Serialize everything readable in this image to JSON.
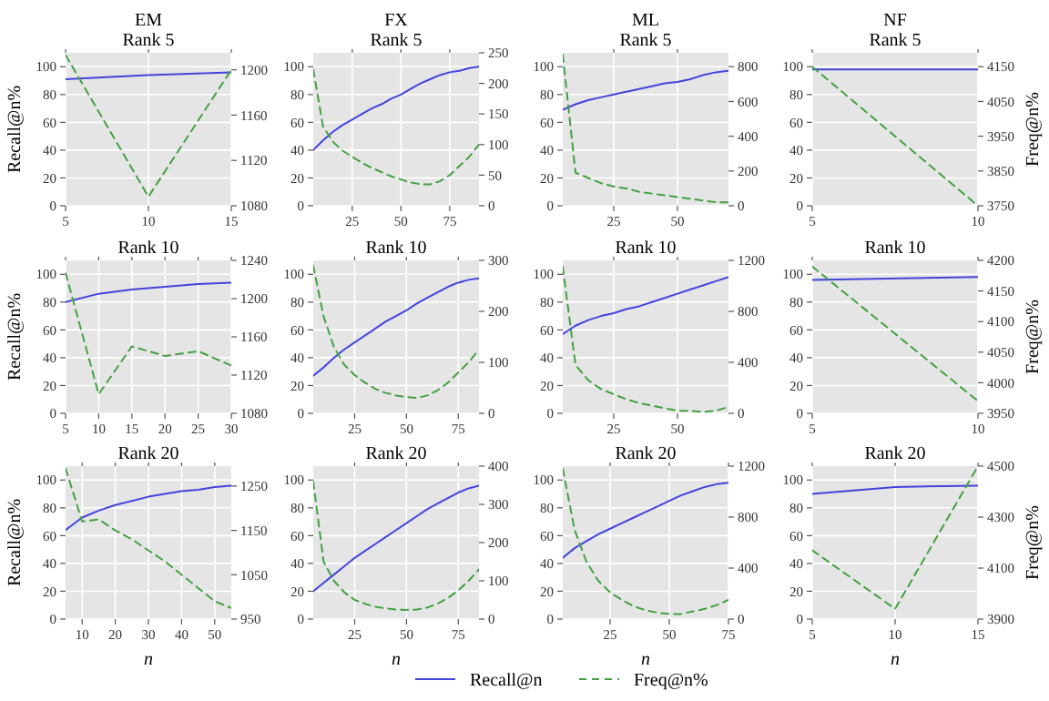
{
  "chart_data": [
    {
      "type": "line",
      "title": "EM",
      "subtitle": "Rank 5",
      "ylabel": "Recall@n%",
      "x": [
        5,
        10,
        15
      ],
      "xlim": [
        5,
        15
      ],
      "xticks": [
        5,
        10,
        15
      ],
      "ylim": [
        0,
        110
      ],
      "yticks": [
        0,
        20,
        40,
        60,
        80,
        100
      ],
      "y2lim": [
        1080,
        1215
      ],
      "y2ticks": [
        1080,
        1120,
        1160,
        1200
      ],
      "grid": true,
      "series": [
        {
          "color": "#4444dd",
          "line_style": "solid",
          "values": [
            91,
            94,
            96
          ]
        },
        {
          "color": "#44a044",
          "line_style": "dashed",
          "axis": "y2",
          "values": [
            1213,
            1088,
            1200
          ]
        }
      ]
    },
    {
      "type": "line",
      "title": "FX",
      "subtitle": "Rank 5",
      "x": [
        5,
        10,
        15,
        20,
        25,
        30,
        35,
        40,
        45,
        50,
        55,
        60,
        65,
        70,
        75,
        80,
        85,
        90
      ],
      "xlim": [
        5,
        90
      ],
      "xticks": [
        25,
        50,
        75
      ],
      "ylim": [
        0,
        110
      ],
      "yticks": [
        0,
        20,
        40,
        60,
        80,
        100
      ],
      "y2lim": [
        0,
        250
      ],
      "y2ticks": [
        0,
        50,
        100,
        150,
        200,
        250
      ],
      "grid": true,
      "series": [
        {
          "color": "#4444dd",
          "line_style": "solid",
          "values": [
            40,
            47,
            53,
            58,
            62,
            66,
            70,
            73,
            77,
            80,
            84,
            88,
            91,
            94,
            96,
            97,
            99,
            100
          ]
        },
        {
          "color": "#44a044",
          "line_style": "dashed",
          "axis": "y2",
          "values": [
            223,
            130,
            105,
            90,
            80,
            70,
            62,
            55,
            48,
            43,
            38,
            35,
            35,
            40,
            50,
            65,
            80,
            100
          ]
        }
      ]
    },
    {
      "type": "line",
      "title": "ML",
      "subtitle": "Rank 5",
      "x": [
        5,
        10,
        15,
        20,
        25,
        30,
        35,
        40,
        45,
        50,
        55,
        60,
        65,
        70
      ],
      "xlim": [
        5,
        70
      ],
      "xticks": [
        25,
        50
      ],
      "ylim": [
        0,
        110
      ],
      "yticks": [
        0,
        20,
        40,
        60,
        80,
        100
      ],
      "y2lim": [
        0,
        880
      ],
      "y2ticks": [
        0,
        200,
        400,
        600,
        800
      ],
      "grid": true,
      "series": [
        {
          "color": "#4444dd",
          "line_style": "solid",
          "values": [
            69,
            73,
            76,
            78,
            80,
            82,
            84,
            86,
            88,
            89,
            91,
            94,
            96,
            97
          ]
        },
        {
          "color": "#44a044",
          "line_style": "dashed",
          "axis": "y2",
          "values": [
            870,
            190,
            160,
            130,
            110,
            100,
            80,
            70,
            60,
            50,
            40,
            30,
            20,
            20
          ]
        }
      ]
    },
    {
      "type": "line",
      "title": "NF",
      "subtitle": "Rank 5",
      "y2label": "Freq@n%",
      "x": [
        5,
        10
      ],
      "xlim": [
        5,
        10
      ],
      "xticks": [
        5,
        10
      ],
      "ylim": [
        0,
        110
      ],
      "yticks": [
        0,
        20,
        40,
        60,
        80,
        100
      ],
      "y2lim": [
        3750,
        4190
      ],
      "y2ticks": [
        3750,
        3850,
        3950,
        4050,
        4150
      ],
      "grid": true,
      "series": [
        {
          "color": "#4444dd",
          "line_style": "solid",
          "values": [
            98,
            98
          ]
        },
        {
          "color": "#44a044",
          "line_style": "dashed",
          "axis": "y2",
          "values": [
            4150,
            3750
          ]
        }
      ]
    },
    {
      "type": "line",
      "title": "Rank 10",
      "ylabel": "Recall@n%",
      "x": [
        5,
        10,
        15,
        20,
        25,
        30
      ],
      "xlim": [
        5,
        30
      ],
      "xticks": [
        5,
        10,
        15,
        20,
        25,
        30
      ],
      "ylim": [
        0,
        110
      ],
      "yticks": [
        0,
        20,
        40,
        60,
        80,
        100
      ],
      "y2lim": [
        1080,
        1240
      ],
      "y2ticks": [
        1080,
        1120,
        1160,
        1200,
        1240
      ],
      "grid": true,
      "series": [
        {
          "color": "#4444dd",
          "line_style": "solid",
          "values": [
            80,
            86,
            89,
            91,
            93,
            94
          ]
        },
        {
          "color": "#44a044",
          "line_style": "dashed",
          "axis": "y2",
          "values": [
            1227,
            1100,
            1150,
            1140,
            1145,
            1130
          ]
        }
      ]
    },
    {
      "type": "line",
      "title": "Rank 10",
      "x": [
        5,
        10,
        15,
        20,
        25,
        30,
        35,
        40,
        45,
        50,
        55,
        60,
        65,
        70,
        75,
        80,
        85
      ],
      "xlim": [
        5,
        85
      ],
      "xticks": [
        25,
        50,
        75
      ],
      "ylim": [
        0,
        110
      ],
      "yticks": [
        0,
        20,
        40,
        60,
        80,
        100
      ],
      "y2lim": [
        0,
        300
      ],
      "y2ticks": [
        0,
        100,
        200,
        300
      ],
      "grid": true,
      "series": [
        {
          "color": "#4444dd",
          "line_style": "solid",
          "values": [
            27,
            33,
            40,
            46,
            51,
            56,
            61,
            66,
            70,
            74,
            79,
            83,
            87,
            91,
            94,
            96,
            97
          ]
        },
        {
          "color": "#44a044",
          "line_style": "dashed",
          "axis": "y2",
          "values": [
            290,
            190,
            130,
            95,
            75,
            60,
            48,
            40,
            35,
            32,
            30,
            35,
            45,
            60,
            80,
            100,
            125
          ]
        }
      ]
    },
    {
      "type": "line",
      "title": "Rank 10",
      "x": [
        5,
        10,
        15,
        20,
        25,
        30,
        35,
        40,
        45,
        50,
        55,
        60,
        65,
        70
      ],
      "xlim": [
        5,
        70
      ],
      "xticks": [
        25,
        50
      ],
      "ylim": [
        0,
        110
      ],
      "yticks": [
        0,
        20,
        40,
        60,
        80,
        100
      ],
      "y2lim": [
        0,
        1200
      ],
      "y2ticks": [
        0,
        400,
        800,
        1200
      ],
      "grid": true,
      "series": [
        {
          "color": "#4444dd",
          "line_style": "solid",
          "values": [
            57,
            63,
            67,
            70,
            72,
            75,
            77,
            80,
            83,
            86,
            89,
            92,
            95,
            98
          ]
        },
        {
          "color": "#44a044",
          "line_style": "dashed",
          "axis": "y2",
          "values": [
            1150,
            380,
            260,
            190,
            150,
            110,
            80,
            60,
            40,
            20,
            20,
            10,
            20,
            50
          ]
        }
      ]
    },
    {
      "type": "line",
      "title": "Rank 10",
      "y2label": "Freq@n%",
      "x": [
        5,
        10
      ],
      "xlim": [
        5,
        10
      ],
      "xticks": [
        5,
        10
      ],
      "ylim": [
        0,
        110
      ],
      "yticks": [
        0,
        20,
        40,
        60,
        80,
        100
      ],
      "y2lim": [
        3950,
        4200
      ],
      "y2ticks": [
        3950,
        4000,
        4050,
        4100,
        4150,
        4200
      ],
      "grid": true,
      "series": [
        {
          "color": "#4444dd",
          "line_style": "solid",
          "values": [
            96,
            98
          ]
        },
        {
          "color": "#44a044",
          "line_style": "dashed",
          "axis": "y2",
          "values": [
            4190,
            3970
          ]
        }
      ]
    },
    {
      "type": "line",
      "title": "Rank 20",
      "ylabel": "Recall@n%",
      "xlabel": "n",
      "x": [
        5,
        10,
        15,
        20,
        25,
        30,
        35,
        40,
        45,
        50,
        55
      ],
      "xlim": [
        5,
        55
      ],
      "xticks": [
        10,
        20,
        30,
        40,
        50
      ],
      "ylim": [
        0,
        110
      ],
      "yticks": [
        0,
        20,
        40,
        60,
        80,
        100
      ],
      "y2lim": [
        950,
        1295
      ],
      "y2ticks": [
        950,
        1050,
        1150,
        1250
      ],
      "grid": true,
      "series": [
        {
          "color": "#4444dd",
          "line_style": "solid",
          "values": [
            64,
            73,
            78,
            82,
            85,
            88,
            90,
            92,
            93,
            95,
            96
          ]
        },
        {
          "color": "#44a044",
          "line_style": "dashed",
          "axis": "y2",
          "values": [
            1290,
            1170,
            1175,
            1150,
            1130,
            1105,
            1080,
            1050,
            1020,
            990,
            975
          ]
        }
      ]
    },
    {
      "type": "line",
      "title": "Rank 20",
      "xlabel": "n",
      "x": [
        5,
        10,
        15,
        20,
        25,
        30,
        35,
        40,
        45,
        50,
        55,
        60,
        65,
        70,
        75,
        80,
        85
      ],
      "xlim": [
        5,
        85
      ],
      "xticks": [
        25,
        50,
        75
      ],
      "ylim": [
        0,
        110
      ],
      "yticks": [
        0,
        20,
        40,
        60,
        80,
        100
      ],
      "y2lim": [
        0,
        400
      ],
      "y2ticks": [
        0,
        100,
        200,
        300,
        400
      ],
      "grid": true,
      "series": [
        {
          "color": "#4444dd",
          "line_style": "solid",
          "values": [
            20,
            26,
            32,
            38,
            44,
            49,
            54,
            59,
            64,
            69,
            74,
            79,
            83,
            87,
            91,
            94,
            96
          ]
        },
        {
          "color": "#44a044",
          "line_style": "dashed",
          "axis": "y2",
          "values": [
            360,
            150,
            100,
            70,
            50,
            40,
            32,
            28,
            25,
            24,
            25,
            30,
            40,
            55,
            75,
            100,
            130
          ]
        }
      ]
    },
    {
      "type": "line",
      "title": "Rank 20",
      "xlabel": "n",
      "x": [
        5,
        10,
        15,
        20,
        25,
        30,
        35,
        40,
        45,
        50,
        55,
        60,
        65,
        70,
        75
      ],
      "xlim": [
        5,
        75
      ],
      "xticks": [
        25,
        50,
        75
      ],
      "ylim": [
        0,
        110
      ],
      "yticks": [
        0,
        20,
        40,
        60,
        80,
        100
      ],
      "y2lim": [
        0,
        1200
      ],
      "y2ticks": [
        0,
        400,
        800,
        1200
      ],
      "grid": true,
      "legend": "bottom",
      "series": [
        {
          "name": "Recall@n",
          "color": "#4444dd",
          "line_style": "solid",
          "values": [
            44,
            51,
            56,
            61,
            65,
            69,
            73,
            77,
            81,
            85,
            89,
            92,
            95,
            97,
            98
          ]
        },
        {
          "name": "Freq@n%",
          "color": "#44a044",
          "line_style": "dashed",
          "axis": "y2",
          "values": [
            1180,
            700,
            450,
            300,
            210,
            150,
            100,
            70,
            50,
            40,
            40,
            60,
            80,
            110,
            150
          ]
        }
      ]
    },
    {
      "type": "line",
      "title": "Rank 20",
      "xlabel": "n",
      "y2label": "Freq@n%",
      "x": [
        5,
        10,
        15
      ],
      "xlim": [
        5,
        15
      ],
      "xticks": [
        5,
        10,
        15
      ],
      "ylim": [
        0,
        110
      ],
      "yticks": [
        0,
        20,
        40,
        60,
        80,
        100
      ],
      "y2lim": [
        3900,
        4500
      ],
      "y2ticks": [
        3900,
        4100,
        4300,
        4500
      ],
      "grid": true,
      "series": [
        {
          "color": "#4444dd",
          "line_style": "solid",
          "values": [
            90,
            95,
            96
          ]
        },
        {
          "color": "#44a044",
          "line_style": "dashed",
          "axis": "y2",
          "values": [
            4170,
            3940,
            4500
          ]
        }
      ]
    }
  ]
}
